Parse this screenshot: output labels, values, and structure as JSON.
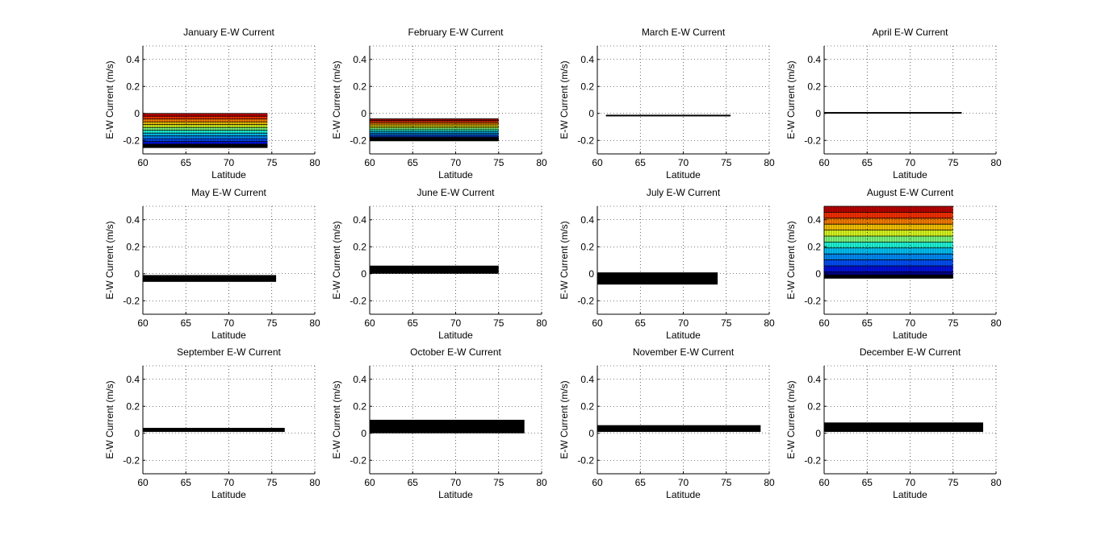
{
  "chart_data": [
    {
      "type": "area",
      "title": "January E-W Current",
      "xlabel": "Latitude",
      "ylabel": "E-W Current (m/s)",
      "xlim": [
        60,
        80
      ],
      "ylim": [
        -0.3,
        0.5
      ],
      "xticks": [
        "60",
        "65",
        "70",
        "75",
        "80"
      ],
      "yticks": [
        "-0.2",
        "0",
        "0.2",
        "0.4"
      ],
      "grid": true,
      "x_extent": [
        60,
        74.5
      ],
      "y_range": [
        -0.25,
        0.0
      ],
      "fill": "contour-jet"
    },
    {
      "type": "area",
      "title": "February E-W Current",
      "xlabel": "Latitude",
      "ylabel": "E-W Current (m/s)",
      "xlim": [
        60,
        80
      ],
      "ylim": [
        -0.3,
        0.5
      ],
      "xticks": [
        "60",
        "65",
        "70",
        "75",
        "80"
      ],
      "yticks": [
        "-0.2",
        "0",
        "0.2",
        "0.4"
      ],
      "grid": true,
      "x_extent": [
        60,
        75
      ],
      "y_range": [
        -0.2,
        -0.04
      ],
      "fill": "contour-jet"
    },
    {
      "type": "area",
      "title": "March E-W Current",
      "xlabel": "Latitude",
      "ylabel": "E-W Current (m/s)",
      "xlim": [
        60,
        80
      ],
      "ylim": [
        -0.3,
        0.5
      ],
      "xticks": [
        "60",
        "65",
        "70",
        "75",
        "80"
      ],
      "yticks": [
        "-0.2",
        "0",
        "0.2",
        "0.4"
      ],
      "grid": true,
      "x_extent": [
        61,
        75.5
      ],
      "y_range": [
        -0.02,
        -0.01
      ],
      "fill": "black"
    },
    {
      "type": "area",
      "title": "April E-W Current",
      "xlabel": "Latitude",
      "ylabel": "E-W Current (m/s)",
      "xlim": [
        60,
        80
      ],
      "ylim": [
        -0.3,
        0.5
      ],
      "xticks": [
        "60",
        "65",
        "70",
        "75",
        "80"
      ],
      "yticks": [
        "-0.2",
        "0",
        "0.2",
        "0.4"
      ],
      "grid": true,
      "x_extent": [
        60,
        76
      ],
      "y_range": [
        0.0,
        0.01
      ],
      "fill": "black"
    },
    {
      "type": "area",
      "title": "May E-W Current",
      "xlabel": "Latitude",
      "ylabel": "E-W Current (m/s)",
      "xlim": [
        60,
        80
      ],
      "ylim": [
        -0.3,
        0.5
      ],
      "xticks": [
        "60",
        "65",
        "70",
        "75",
        "80"
      ],
      "yticks": [
        "-0.2",
        "0",
        "0.2",
        "0.4"
      ],
      "grid": true,
      "x_extent": [
        60,
        75.5
      ],
      "y_range": [
        -0.06,
        -0.01
      ],
      "fill": "black"
    },
    {
      "type": "area",
      "title": "June E-W Current",
      "xlabel": "Latitude",
      "ylabel": "E-W Current (m/s)",
      "xlim": [
        60,
        80
      ],
      "ylim": [
        -0.3,
        0.5
      ],
      "xticks": [
        "60",
        "65",
        "70",
        "75",
        "80"
      ],
      "yticks": [
        "-0.2",
        "0",
        "0.2",
        "0.4"
      ],
      "grid": true,
      "x_extent": [
        60,
        75
      ],
      "y_range": [
        0.0,
        0.06
      ],
      "fill": "black"
    },
    {
      "type": "area",
      "title": "July E-W Current",
      "xlabel": "Latitude",
      "ylabel": "E-W Current (m/s)",
      "xlim": [
        60,
        80
      ],
      "ylim": [
        -0.3,
        0.5
      ],
      "xticks": [
        "60",
        "65",
        "70",
        "75",
        "80"
      ],
      "yticks": [
        "-0.2",
        "0",
        "0.2",
        "0.4"
      ],
      "grid": true,
      "x_extent": [
        60,
        74
      ],
      "y_range": [
        -0.08,
        0.01
      ],
      "fill": "black"
    },
    {
      "type": "area",
      "title": "August E-W Current",
      "xlabel": "Latitude",
      "ylabel": "E-W Current (m/s)",
      "xlim": [
        60,
        80
      ],
      "ylim": [
        -0.3,
        0.5
      ],
      "xticks": [
        "60",
        "65",
        "70",
        "75",
        "80"
      ],
      "yticks": [
        "-0.2",
        "0",
        "0.2",
        "0.4"
      ],
      "grid": true,
      "x_extent": [
        60,
        75
      ],
      "y_range": [
        -0.03,
        0.5
      ],
      "fill": "contour-jet"
    },
    {
      "type": "area",
      "title": "September E-W Current",
      "xlabel": "Latitude",
      "ylabel": "E-W Current (m/s)",
      "xlim": [
        60,
        80
      ],
      "ylim": [
        -0.3,
        0.5
      ],
      "xticks": [
        "60",
        "65",
        "70",
        "75",
        "80"
      ],
      "yticks": [
        "-0.2",
        "0",
        "0.2",
        "0.4"
      ],
      "grid": true,
      "x_extent": [
        60,
        76.5
      ],
      "y_range": [
        0.01,
        0.04
      ],
      "fill": "black"
    },
    {
      "type": "area",
      "title": "October E-W Current",
      "xlabel": "Latitude",
      "ylabel": "E-W Current (m/s)",
      "xlim": [
        60,
        80
      ],
      "ylim": [
        -0.3,
        0.5
      ],
      "xticks": [
        "60",
        "65",
        "70",
        "75",
        "80"
      ],
      "yticks": [
        "-0.2",
        "0",
        "0.2",
        "0.4"
      ],
      "grid": true,
      "x_extent": [
        60,
        78
      ],
      "y_range": [
        0.0,
        0.1
      ],
      "fill": "black"
    },
    {
      "type": "area",
      "title": "November E-W Current",
      "xlabel": "Latitude",
      "ylabel": "E-W Current (m/s)",
      "xlim": [
        60,
        80
      ],
      "ylim": [
        -0.3,
        0.5
      ],
      "xticks": [
        "60",
        "65",
        "70",
        "75",
        "80"
      ],
      "yticks": [
        "-0.2",
        "0",
        "0.2",
        "0.4"
      ],
      "grid": true,
      "x_extent": [
        60,
        79
      ],
      "y_range": [
        0.01,
        0.06
      ],
      "fill": "black"
    },
    {
      "type": "area",
      "title": "December E-W Current",
      "xlabel": "Latitude",
      "ylabel": "E-W Current (m/s)",
      "xlim": [
        60,
        80
      ],
      "ylim": [
        -0.3,
        0.5
      ],
      "xticks": [
        "60",
        "65",
        "70",
        "75",
        "80"
      ],
      "yticks": [
        "-0.2",
        "0",
        "0.2",
        "0.4"
      ],
      "grid": true,
      "x_extent": [
        60,
        78.5
      ],
      "y_range": [
        0.01,
        0.08
      ],
      "fill": "black"
    }
  ],
  "jet_colors": [
    "#0000a0",
    "#0010e0",
    "#0050ff",
    "#0090ff",
    "#00c8ff",
    "#20ffdf",
    "#80ff80",
    "#dfff20",
    "#ffc800",
    "#ff8000",
    "#ff3000",
    "#c00000"
  ]
}
